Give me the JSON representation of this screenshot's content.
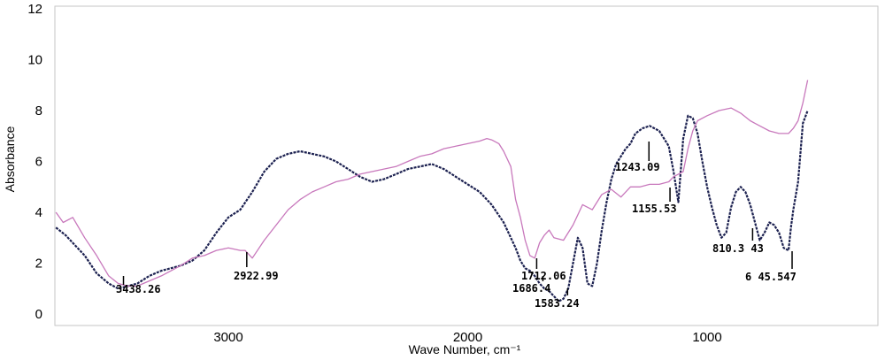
{
  "chart_data": {
    "type": "line",
    "title": "",
    "xlabel": "Wave Number, cm⁻¹",
    "ylabel": "Absorbance",
    "xlim": [
      3720,
      200
    ],
    "ylim": [
      0,
      12
    ],
    "x_ticks": [
      {
        "value": 3000,
        "label": "3000"
      },
      {
        "value": 2000,
        "label": "2000"
      },
      {
        "value": 1000,
        "label": "1000"
      }
    ],
    "y_ticks": [
      {
        "value": 0,
        "label": "0"
      },
      {
        "value": 2,
        "label": "2"
      },
      {
        "value": 4,
        "label": "4"
      },
      {
        "value": 6,
        "label": "6"
      },
      {
        "value": 8,
        "label": "8"
      },
      {
        "value": 10,
        "label": "10"
      },
      {
        "value": 12,
        "label": "12"
      }
    ],
    "grid": false,
    "series": [
      {
        "color": "#1c2150",
        "x": [
          3720,
          3680,
          3600,
          3550,
          3500,
          3460,
          3420,
          3380,
          3330,
          3280,
          3200,
          3150,
          3100,
          3050,
          3000,
          2950,
          2900,
          2850,
          2800,
          2750,
          2700,
          2650,
          2600,
          2550,
          2500,
          2450,
          2400,
          2350,
          2300,
          2250,
          2200,
          2150,
          2100,
          2050,
          2000,
          1950,
          1900,
          1850,
          1800,
          1780,
          1760,
          1740,
          1720,
          1700,
          1680,
          1660,
          1640,
          1620,
          1600,
          1580,
          1560,
          1540,
          1520,
          1500,
          1480,
          1460,
          1440,
          1420,
          1400,
          1380,
          1360,
          1340,
          1320,
          1300,
          1270,
          1240,
          1200,
          1160,
          1140,
          1120,
          1100,
          1080,
          1060,
          1040,
          1020,
          1000,
          980,
          960,
          940,
          920,
          900,
          880,
          860,
          840,
          820,
          800,
          780,
          760,
          740,
          720,
          700,
          680,
          660,
          650,
          640,
          620,
          600,
          580
        ],
        "y": [
          3.4,
          3.1,
          2.3,
          1.6,
          1.2,
          1.0,
          1.1,
          1.2,
          1.5,
          1.7,
          1.9,
          2.1,
          2.5,
          3.2,
          3.8,
          4.1,
          4.8,
          5.6,
          6.1,
          6.3,
          6.4,
          6.3,
          6.2,
          6.0,
          5.7,
          5.4,
          5.2,
          5.3,
          5.5,
          5.7,
          5.8,
          5.9,
          5.7,
          5.4,
          5.1,
          4.8,
          4.3,
          3.6,
          2.6,
          2.1,
          1.8,
          1.7,
          1.5,
          1.2,
          1.0,
          0.9,
          0.7,
          0.5,
          0.6,
          1.0,
          2.0,
          3.0,
          2.6,
          1.2,
          1.1,
          2.0,
          3.3,
          4.4,
          5.3,
          5.9,
          6.2,
          6.5,
          6.7,
          7.1,
          7.3,
          7.4,
          7.2,
          6.6,
          5.6,
          4.4,
          6.9,
          7.8,
          7.7,
          7.1,
          6.0,
          5.0,
          4.2,
          3.5,
          3.0,
          3.2,
          4.2,
          4.8,
          5.0,
          4.8,
          4.3,
          3.6,
          2.9,
          3.2,
          3.6,
          3.5,
          3.2,
          2.6,
          2.5,
          3.4,
          4.1,
          5.2,
          7.5,
          8.0
        ]
      },
      {
        "color": "#c878bc",
        "x": [
          3720,
          3690,
          3650,
          3600,
          3550,
          3500,
          3460,
          3420,
          3380,
          3330,
          3280,
          3200,
          3150,
          3100,
          3050,
          3000,
          2950,
          2930,
          2900,
          2850,
          2800,
          2750,
          2700,
          2650,
          2600,
          2550,
          2500,
          2450,
          2400,
          2350,
          2300,
          2250,
          2200,
          2150,
          2100,
          2050,
          2000,
          1950,
          1920,
          1900,
          1870,
          1850,
          1820,
          1800,
          1780,
          1760,
          1740,
          1720,
          1700,
          1680,
          1660,
          1640,
          1600,
          1560,
          1520,
          1480,
          1440,
          1400,
          1360,
          1320,
          1280,
          1240,
          1200,
          1160,
          1140,
          1120,
          1100,
          1080,
          1060,
          1040,
          1000,
          950,
          900,
          860,
          820,
          800,
          780,
          740,
          700,
          680,
          660,
          640,
          620,
          600,
          580
        ],
        "y": [
          4.0,
          3.6,
          3.8,
          3.0,
          2.3,
          1.5,
          1.2,
          1.1,
          1.1,
          1.3,
          1.5,
          1.9,
          2.2,
          2.3,
          2.5,
          2.6,
          2.5,
          2.5,
          2.2,
          2.9,
          3.5,
          4.1,
          4.5,
          4.8,
          5.0,
          5.2,
          5.3,
          5.5,
          5.6,
          5.7,
          5.8,
          6.0,
          6.2,
          6.3,
          6.5,
          6.6,
          6.7,
          6.8,
          6.9,
          6.85,
          6.7,
          6.4,
          5.8,
          4.5,
          3.8,
          2.9,
          2.3,
          2.2,
          2.8,
          3.1,
          3.3,
          3.0,
          2.9,
          3.5,
          4.3,
          4.1,
          4.7,
          4.9,
          4.6,
          5.0,
          5.0,
          5.1,
          5.1,
          5.2,
          5.4,
          5.5,
          5.6,
          6.5,
          7.2,
          7.6,
          7.8,
          8.0,
          8.1,
          7.9,
          7.6,
          7.5,
          7.4,
          7.2,
          7.1,
          7.1,
          7.1,
          7.3,
          7.6,
          8.3,
          9.2
        ]
      }
    ],
    "annotations": [
      {
        "text": "3438.26"
      },
      {
        "text": "2922.99"
      },
      {
        "text": "1712.06"
      },
      {
        "text": "1686.4"
      },
      {
        "text": "1583.24"
      },
      {
        "text": "1243.09"
      },
      {
        "text": "1155.53"
      },
      {
        "text": "810.3 43"
      },
      {
        "text": "6 45.547"
      }
    ]
  }
}
